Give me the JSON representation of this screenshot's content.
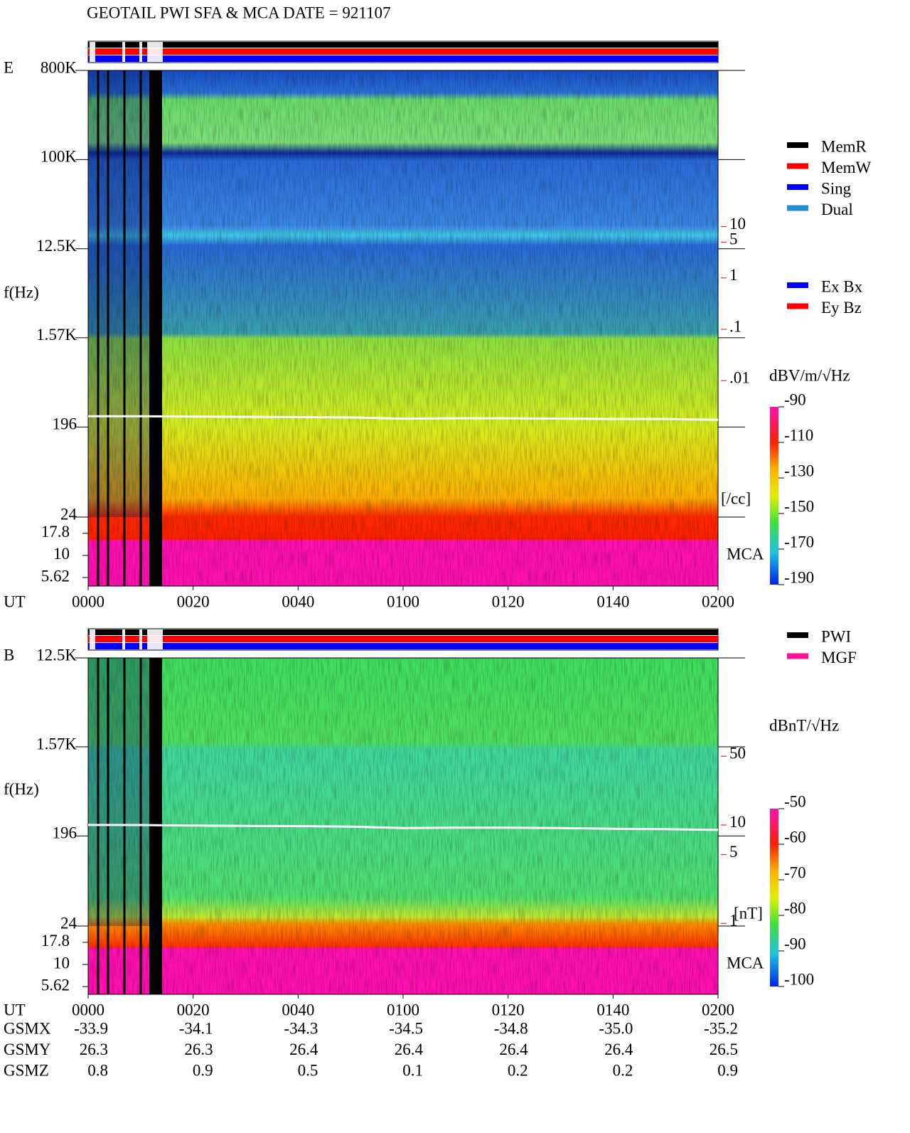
{
  "title": "GEOTAIL  PWI SFA & MCA   DATE = 921107",
  "chart_data": [
    {
      "type": "spectrogram",
      "panel_label": "E",
      "y_label": "f(Hz)",
      "x_label": "UT",
      "xlim": [
        0,
        120
      ],
      "xticks": [
        {
          "value": 0,
          "label": "0000"
        },
        {
          "value": 20,
          "label": "0020"
        },
        {
          "value": 40,
          "label": "0040"
        },
        {
          "value": 60,
          "label": "0100"
        },
        {
          "value": 80,
          "label": "0120"
        },
        {
          "value": 100,
          "label": "0140"
        },
        {
          "value": 120,
          "label": "0200"
        }
      ],
      "ylog": true,
      "ylim": [
        24,
        800000
      ],
      "yticks": [
        {
          "value": 800000,
          "label": "800K"
        },
        {
          "value": 100000,
          "label": "100K"
        },
        {
          "value": 12500,
          "label": "12.5K"
        },
        {
          "value": 1570,
          "label": "1.57K"
        },
        196,
        24
      ],
      "mca_label": "MCA",
      "mca_ylim": [
        4.5,
        27.2
      ],
      "mca_yticks": [
        17.8,
        10,
        5.62
      ],
      "right_label": "[/cc]",
      "right_color": "#ff0000",
      "right_ylim": [
        1e-06,
        11000
      ],
      "right_yticks": [
        10,
        5,
        1,
        {
          "value": 0.1,
          "label": ".1"
        },
        {
          "value": 0.01,
          "label": ".01"
        }
      ],
      "colorbar_label": "dBV/m/√Hz",
      "colorbar_lim": [
        -190,
        -90
      ],
      "colorbar_ticks": [
        -90,
        -110,
        -130,
        -150,
        -170,
        -190
      ],
      "trace_color": "#ffffff",
      "trace_x": [
        0,
        10,
        20,
        30,
        40,
        50,
        60,
        70,
        80,
        90,
        100,
        110,
        120
      ],
      "trace_values": [
        252,
        252,
        250,
        248,
        247,
        245,
        238,
        240,
        240,
        238,
        236,
        236,
        232
      ],
      "legend": [
        {
          "name": "MemR",
          "color": "#000000"
        },
        {
          "name": "MemW",
          "color": "#ff0000"
        },
        {
          "name": "Sing",
          "color": "#0000ff"
        },
        {
          "name": "Dual",
          "color": "#2090d0"
        }
      ],
      "legend2": [
        {
          "name": "Ex Bx",
          "color": "#0000ff"
        },
        {
          "name": "Ey Bz",
          "color": "#ff0000"
        }
      ]
    },
    {
      "type": "spectrogram",
      "panel_label": "B",
      "y_label": "f(Hz)",
      "x_label": "UT",
      "xlim": [
        0,
        120
      ],
      "xticks": [
        {
          "value": 0,
          "label": "0000"
        },
        {
          "value": 20,
          "label": "0020"
        },
        {
          "value": 40,
          "label": "0040"
        },
        {
          "value": 60,
          "label": "0100"
        },
        {
          "value": 80,
          "label": "0120"
        },
        {
          "value": 100,
          "label": "0140"
        },
        {
          "value": 120,
          "label": "0200"
        }
      ],
      "ylog": true,
      "ylim": [
        24,
        12500
      ],
      "yticks": [
        {
          "value": 12500,
          "label": "12.5K"
        },
        {
          "value": 1570,
          "label": "1.57K"
        },
        196,
        24
      ],
      "mca_label": "MCA",
      "mca_ylim": [
        4.6,
        27.2
      ],
      "mca_yticks": [
        17.8,
        10,
        5.62
      ],
      "right_label": "[nT]",
      "right_color": "#ff0000",
      "right_ylim": [
        0.19,
        500
      ],
      "right_yticks": [
        50,
        10,
        5,
        1
      ],
      "colorbar_label": "dBnT/√Hz",
      "colorbar_lim": [
        -100,
        -50
      ],
      "colorbar_ticks": [
        -50,
        -60,
        -70,
        -80,
        -90,
        -100
      ],
      "trace_color": "#ffffff",
      "trace_x": [
        0,
        10,
        20,
        30,
        40,
        50,
        60,
        70,
        80,
        90,
        100,
        110,
        120
      ],
      "trace_values": [
        254,
        253,
        250,
        248,
        247,
        244,
        236,
        238,
        238,
        236,
        232,
        230,
        226
      ],
      "legend": [
        {
          "name": "PWI",
          "color": "#000000"
        },
        {
          "name": "MGF",
          "color": "#ff1090"
        }
      ]
    }
  ],
  "orbit": {
    "labels": [
      "GSMX",
      "GSMY",
      "GSMZ"
    ],
    "rows": [
      [
        "-33.9",
        "-34.1",
        "-34.3",
        "-34.5",
        "-34.8",
        "-35.0",
        "-35.2"
      ],
      [
        "26.3",
        "26.3",
        "26.4",
        "26.4",
        "26.4",
        "26.4",
        "26.5"
      ],
      [
        "0.8",
        "0.9",
        "0.5",
        "0.1",
        "0.2",
        "0.2",
        "0.9"
      ]
    ]
  }
}
